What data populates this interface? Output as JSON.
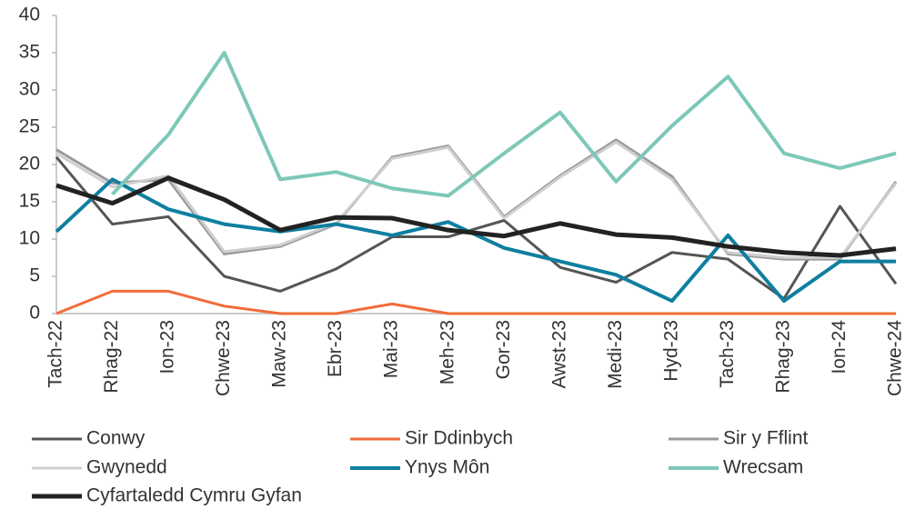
{
  "chart_data": {
    "type": "line",
    "categories": [
      "Tach-22",
      "Rhag-22",
      "Ion-23",
      "Chwe-23",
      "Maw-23",
      "Ebr-23",
      "Mai-23",
      "Meh-23",
      "Gor-23",
      "Awst-23",
      "Medi-23",
      "Hyd-23",
      "Tach-23",
      "Rhag-23",
      "Ion-24",
      "Chwe-24"
    ],
    "series": [
      {
        "name": "Conwy",
        "color": "#555555",
        "width": 3,
        "values": [
          21,
          12,
          13,
          5,
          3,
          6,
          10.3,
          10.3,
          12.5,
          6.2,
          4.2,
          8.2,
          7.3,
          2,
          14.4,
          4
        ]
      },
      {
        "name": "Sir Ddinbych",
        "color": "#f26b3a",
        "width": 3,
        "values": [
          0,
          3,
          3,
          1,
          0,
          0,
          1.3,
          0,
          0,
          0,
          0,
          0,
          0,
          0,
          0,
          0
        ]
      },
      {
        "name": "Sir y Fflint",
        "color": "#9a9a9a",
        "width": 3,
        "values": [
          22,
          17.5,
          18,
          8,
          9,
          12,
          21,
          22.5,
          13,
          18.5,
          23.3,
          18.4,
          8,
          7.3,
          7.3,
          17.7
        ]
      },
      {
        "name": "Gwynedd",
        "color": "#cfcfcf",
        "width": 3,
        "values": [
          21.5,
          17,
          18.5,
          8.3,
          9.2,
          12.2,
          20.8,
          22.3,
          12.8,
          18.3,
          23,
          18,
          8.2,
          7.5,
          7.5,
          17.5
        ]
      },
      {
        "name": "Ynys Môn",
        "color": "#0e7fa0",
        "width": 4,
        "values": [
          11,
          18,
          14,
          12,
          11,
          12,
          10.5,
          12.3,
          8.8,
          7,
          5.2,
          1.7,
          10.5,
          1.7,
          7,
          7
        ]
      },
      {
        "name": "Wrecsam",
        "color": "#7dc8b8",
        "width": 4,
        "values": [
          null,
          16,
          24,
          35,
          18,
          19,
          16.8,
          15.8,
          21.5,
          27,
          17.7,
          25.2,
          31.8,
          21.5,
          19.5,
          21.5
        ]
      },
      {
        "name": "Cyfartaledd Cymru Gyfan",
        "color": "#222222",
        "width": 5,
        "values": [
          17.2,
          14.8,
          18.2,
          15.3,
          11.2,
          12.9,
          12.8,
          11.2,
          10.4,
          12.1,
          10.6,
          10.2,
          9,
          8.2,
          7.8,
          8.7
        ]
      }
    ],
    "ylim": [
      0,
      40
    ],
    "yticks": [
      0,
      5,
      10,
      15,
      20,
      25,
      30,
      35,
      40
    ]
  }
}
